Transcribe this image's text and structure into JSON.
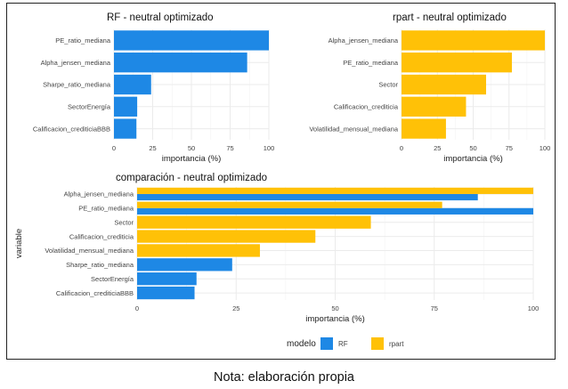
{
  "caption": "Nota: elaboración propia",
  "colors": {
    "rf": "#1E88E5",
    "rpart": "#FFC107",
    "grid": "#EBEBEB",
    "text": "#444444"
  },
  "chart_data": [
    {
      "type": "bar",
      "orientation": "horizontal",
      "title": "RF - neutral optimizado",
      "xlabel": "importancia (%)",
      "ylabel": "",
      "xlim": [
        0,
        100
      ],
      "xticks": [
        "0",
        "25",
        "50",
        "75",
        "100"
      ],
      "color": "#1E88E5",
      "categories": [
        "PE_ratio_mediana",
        "Alpha_jensen_mediana",
        "Sharpe_ratio_mediana",
        "SectorEnergía",
        "Calificacion_crediticiaBBB"
      ],
      "values": [
        100,
        86,
        24,
        15,
        14.5
      ]
    },
    {
      "type": "bar",
      "orientation": "horizontal",
      "title": "rpart - neutral optimizado",
      "xlabel": "importancia (%)",
      "ylabel": "",
      "xlim": [
        0,
        100
      ],
      "xticks": [
        "0",
        "25",
        "50",
        "75",
        "100"
      ],
      "color": "#FFC107",
      "categories": [
        "Alpha_jensen_mediana",
        "PE_ratio_mediana",
        "Sector",
        "Calificacion_crediticia",
        "Volatilidad_mensual_mediana"
      ],
      "values": [
        100,
        77,
        59,
        45,
        31
      ]
    },
    {
      "type": "bar",
      "orientation": "horizontal",
      "grouped": true,
      "title": "comparación - neutral optimizado",
      "xlabel": "importancia (%)",
      "ylabel": "variable",
      "xlim": [
        0,
        100
      ],
      "xticks": [
        "0",
        "25",
        "50",
        "75",
        "100"
      ],
      "legend": {
        "title": "modelo",
        "position": "bottom"
      },
      "categories": [
        "Alpha_jensen_mediana",
        "PE_ratio_mediana",
        "Sector",
        "Calificacion_crediticia",
        "Volatilidad_mensual_mediana",
        "Sharpe_ratio_mediana",
        "SectorEnergía",
        "Calificacion_crediticiaBBB"
      ],
      "series": [
        {
          "name": "RF",
          "color": "#1E88E5",
          "values": [
            86,
            100,
            null,
            null,
            null,
            24,
            15,
            14.5
          ]
        },
        {
          "name": "rpart",
          "color": "#FFC107",
          "values": [
            100,
            77,
            59,
            45,
            31,
            null,
            null,
            null
          ]
        }
      ]
    }
  ]
}
